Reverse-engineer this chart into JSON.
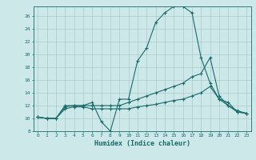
{
  "xlabel": "Humidex (Indice chaleur)",
  "ylabel": "",
  "xlim": [
    -0.5,
    23.5
  ],
  "ylim": [
    8,
    27.5
  ],
  "yticks": [
    8,
    10,
    12,
    14,
    16,
    18,
    20,
    22,
    24,
    26
  ],
  "xticks": [
    0,
    1,
    2,
    3,
    4,
    5,
    6,
    7,
    8,
    9,
    10,
    11,
    12,
    13,
    14,
    15,
    16,
    17,
    18,
    19,
    20,
    21,
    22,
    23
  ],
  "bg_color": "#cce8e8",
  "line_color": "#1a6b6b",
  "grid_color": "#aacccc",
  "line1_x": [
    0,
    1,
    2,
    3,
    4,
    5,
    6,
    7,
    8,
    9,
    10,
    11,
    12,
    13,
    14,
    15,
    16,
    17,
    18,
    19,
    20,
    21,
    22,
    23
  ],
  "line1_y": [
    10.2,
    10.0,
    10.0,
    12.0,
    12.0,
    12.0,
    12.5,
    9.5,
    8.0,
    13.0,
    13.0,
    19.0,
    21.0,
    25.0,
    26.5,
    27.5,
    27.5,
    26.5,
    19.5,
    15.5,
    13.0,
    12.5,
    11.0,
    10.8
  ],
  "line2_x": [
    0,
    1,
    2,
    3,
    4,
    5,
    6,
    7,
    8,
    9,
    10,
    11,
    12,
    13,
    14,
    15,
    16,
    17,
    18,
    19,
    20,
    21,
    22,
    23
  ],
  "line2_y": [
    10.2,
    10.0,
    10.0,
    11.8,
    12.0,
    12.0,
    12.0,
    12.0,
    12.0,
    12.0,
    12.5,
    13.0,
    13.5,
    14.0,
    14.5,
    15.0,
    15.5,
    16.5,
    17.0,
    19.5,
    13.5,
    12.0,
    11.0,
    10.8
  ],
  "line3_x": [
    0,
    1,
    2,
    3,
    4,
    5,
    6,
    7,
    8,
    9,
    10,
    11,
    12,
    13,
    14,
    15,
    16,
    17,
    18,
    19,
    20,
    21,
    22,
    23
  ],
  "line3_y": [
    10.2,
    10.0,
    10.0,
    11.5,
    11.8,
    11.8,
    11.5,
    11.5,
    11.5,
    11.5,
    11.5,
    11.8,
    12.0,
    12.2,
    12.5,
    12.8,
    13.0,
    13.5,
    14.0,
    15.0,
    13.0,
    12.0,
    11.2,
    10.8
  ]
}
